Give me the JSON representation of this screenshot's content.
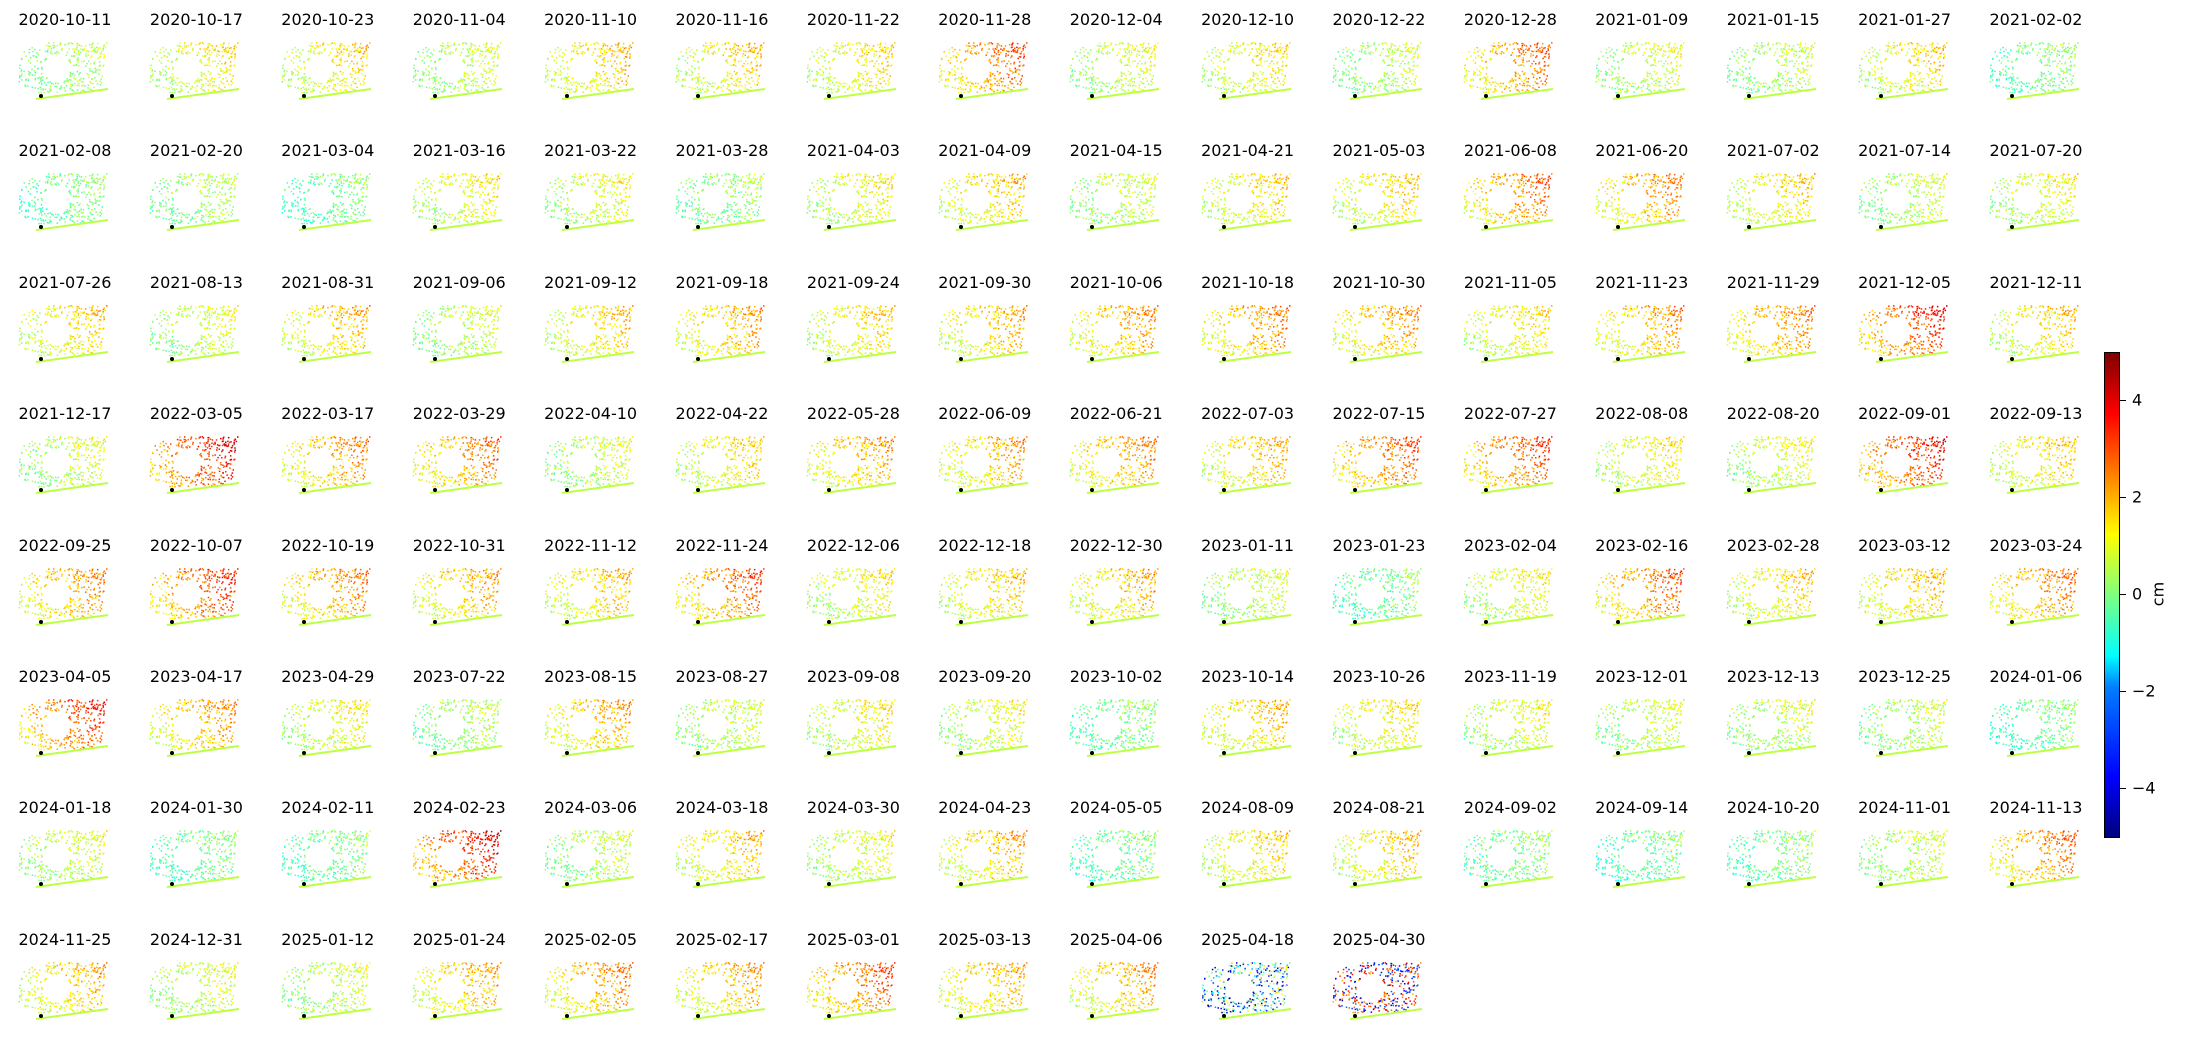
{
  "chart_data": {
    "type": "scatter",
    "layout": "small-multiples",
    "colormap": "jet",
    "colorbar": {
      "label": "cm",
      "range": [
        -5,
        5
      ],
      "ticks": [
        {
          "value": 4,
          "label": "4"
        },
        {
          "value": 2,
          "label": "2"
        },
        {
          "value": 0,
          "label": "0"
        },
        {
          "value": -2,
          "label": "−2"
        },
        {
          "value": -4,
          "label": "−4"
        }
      ]
    },
    "panels": [
      {
        "date": "2020-10-11",
        "mean": 0.2
      },
      {
        "date": "2020-10-17",
        "mean": 0.9
      },
      {
        "date": "2020-10-23",
        "mean": 1.0
      },
      {
        "date": "2020-11-04",
        "mean": 0.4
      },
      {
        "date": "2020-11-10",
        "mean": 1.2
      },
      {
        "date": "2020-11-16",
        "mean": 1.1
      },
      {
        "date": "2020-11-22",
        "mean": 1.0
      },
      {
        "date": "2020-11-28",
        "mean": 1.9
      },
      {
        "date": "2020-12-04",
        "mean": 0.5
      },
      {
        "date": "2020-12-10",
        "mean": 0.9
      },
      {
        "date": "2020-12-22",
        "mean": 0.3
      },
      {
        "date": "2020-12-28",
        "mean": 1.8
      },
      {
        "date": "2021-01-09",
        "mean": 0.5
      },
      {
        "date": "2021-01-15",
        "mean": 0.3
      },
      {
        "date": "2021-01-27",
        "mean": 1.0
      },
      {
        "date": "2021-02-02",
        "mean": -0.2
      },
      {
        "date": "2021-02-08",
        "mean": -0.2
      },
      {
        "date": "2021-02-20",
        "mean": 0.2
      },
      {
        "date": "2021-03-04",
        "mean": -0.3
      },
      {
        "date": "2021-03-16",
        "mean": 0.8
      },
      {
        "date": "2021-03-22",
        "mean": 0.6
      },
      {
        "date": "2021-03-28",
        "mean": 0.0
      },
      {
        "date": "2021-04-03",
        "mean": 0.8
      },
      {
        "date": "2021-04-09",
        "mean": 1.2
      },
      {
        "date": "2021-04-15",
        "mean": 0.4
      },
      {
        "date": "2021-04-21",
        "mean": 1.0
      },
      {
        "date": "2021-05-03",
        "mean": 1.0
      },
      {
        "date": "2021-06-08",
        "mean": 1.8
      },
      {
        "date": "2021-06-20",
        "mean": 1.6
      },
      {
        "date": "2021-07-02",
        "mean": 1.0
      },
      {
        "date": "2021-07-14",
        "mean": 0.4
      },
      {
        "date": "2021-07-20",
        "mean": 0.7
      },
      {
        "date": "2021-07-26",
        "mean": 1.1
      },
      {
        "date": "2021-08-13",
        "mean": 0.5
      },
      {
        "date": "2021-08-31",
        "mean": 1.3
      },
      {
        "date": "2021-09-06",
        "mean": 0.4
      },
      {
        "date": "2021-09-12",
        "mean": 1.1
      },
      {
        "date": "2021-09-18",
        "mean": 1.4
      },
      {
        "date": "2021-09-24",
        "mean": 1.0
      },
      {
        "date": "2021-09-30",
        "mean": 1.3
      },
      {
        "date": "2021-10-06",
        "mean": 1.5
      },
      {
        "date": "2021-10-18",
        "mean": 1.6
      },
      {
        "date": "2021-10-30",
        "mean": 1.5
      },
      {
        "date": "2021-11-05",
        "mean": 0.9
      },
      {
        "date": "2021-11-23",
        "mean": 1.5
      },
      {
        "date": "2021-11-29",
        "mean": 1.6
      },
      {
        "date": "2021-12-05",
        "mean": 2.4
      },
      {
        "date": "2021-12-11",
        "mean": 1.1
      },
      {
        "date": "2021-12-17",
        "mean": 0.5
      },
      {
        "date": "2022-03-05",
        "mean": 2.6
      },
      {
        "date": "2022-03-17",
        "mean": 1.6
      },
      {
        "date": "2022-03-29",
        "mean": 1.8
      },
      {
        "date": "2022-04-10",
        "mean": 0.5
      },
      {
        "date": "2022-04-22",
        "mean": 1.0
      },
      {
        "date": "2022-05-28",
        "mean": 1.4
      },
      {
        "date": "2022-06-09",
        "mean": 1.4
      },
      {
        "date": "2022-06-21",
        "mean": 1.6
      },
      {
        "date": "2022-07-03",
        "mean": 1.3
      },
      {
        "date": "2022-07-15",
        "mean": 2.0
      },
      {
        "date": "2022-07-27",
        "mean": 2.1
      },
      {
        "date": "2022-08-08",
        "mean": 0.8
      },
      {
        "date": "2022-08-20",
        "mean": 0.6
      },
      {
        "date": "2022-09-01",
        "mean": 2.5
      },
      {
        "date": "2022-09-13",
        "mean": 1.1
      },
      {
        "date": "2022-09-25",
        "mean": 1.6
      },
      {
        "date": "2022-10-07",
        "mean": 2.2
      },
      {
        "date": "2022-10-19",
        "mean": 1.6
      },
      {
        "date": "2022-10-31",
        "mean": 1.4
      },
      {
        "date": "2022-11-12",
        "mean": 1.2
      },
      {
        "date": "2022-11-24",
        "mean": 2.0
      },
      {
        "date": "2022-12-06",
        "mean": 0.8
      },
      {
        "date": "2022-12-18",
        "mean": 1.1
      },
      {
        "date": "2022-12-30",
        "mean": 1.3
      },
      {
        "date": "2023-01-11",
        "mean": 0.4
      },
      {
        "date": "2023-01-23",
        "mean": -0.3
      },
      {
        "date": "2023-02-04",
        "mean": 0.7
      },
      {
        "date": "2023-02-16",
        "mean": 1.9
      },
      {
        "date": "2023-02-28",
        "mean": 1.0
      },
      {
        "date": "2023-03-12",
        "mean": 1.2
      },
      {
        "date": "2023-03-24",
        "mean": 1.7
      },
      {
        "date": "2023-04-05",
        "mean": 2.3
      },
      {
        "date": "2023-04-17",
        "mean": 1.5
      },
      {
        "date": "2023-04-29",
        "mean": 0.8
      },
      {
        "date": "2023-07-22",
        "mean": 0.2
      },
      {
        "date": "2023-08-15",
        "mean": 1.4
      },
      {
        "date": "2023-08-27",
        "mean": 0.4
      },
      {
        "date": "2023-09-08",
        "mean": 0.8
      },
      {
        "date": "2023-09-20",
        "mean": 0.6
      },
      {
        "date": "2023-10-02",
        "mean": -0.2
      },
      {
        "date": "2023-10-14",
        "mean": 1.2
      },
      {
        "date": "2023-10-26",
        "mean": 0.9
      },
      {
        "date": "2023-11-19",
        "mean": 0.6
      },
      {
        "date": "2023-12-01",
        "mean": 0.4
      },
      {
        "date": "2023-12-13",
        "mean": 0.4
      },
      {
        "date": "2023-12-25",
        "mean": 0.3
      },
      {
        "date": "2024-01-06",
        "mean": -0.4
      },
      {
        "date": "2024-01-18",
        "mean": 0.5
      },
      {
        "date": "2024-01-30",
        "mean": -0.3
      },
      {
        "date": "2024-02-11",
        "mean": -0.2
      },
      {
        "date": "2024-02-23",
        "mean": 2.6
      },
      {
        "date": "2024-03-06",
        "mean": 0.3
      },
      {
        "date": "2024-03-18",
        "mean": 1.2
      },
      {
        "date": "2024-03-30",
        "mean": 0.6
      },
      {
        "date": "2024-04-23",
        "mean": 1.3
      },
      {
        "date": "2024-05-05",
        "mean": -0.3
      },
      {
        "date": "2024-08-09",
        "mean": 1.0
      },
      {
        "date": "2024-08-21",
        "mean": 1.1
      },
      {
        "date": "2024-09-02",
        "mean": -0.1
      },
      {
        "date": "2024-09-14",
        "mean": -0.4
      },
      {
        "date": "2024-10-20",
        "mean": -0.2
      },
      {
        "date": "2024-11-01",
        "mean": 0.4
      },
      {
        "date": "2024-11-13",
        "mean": 1.8
      },
      {
        "date": "2024-11-25",
        "mean": 1.3
      },
      {
        "date": "2024-12-31",
        "mean": 0.5
      },
      {
        "date": "2025-01-12",
        "mean": 0.4
      },
      {
        "date": "2025-01-24",
        "mean": 1.3
      },
      {
        "date": "2025-02-05",
        "mean": 1.6
      },
      {
        "date": "2025-02-17",
        "mean": 1.4
      },
      {
        "date": "2025-03-01",
        "mean": 2.0
      },
      {
        "date": "2025-03-13",
        "mean": 1.3
      },
      {
        "date": "2025-04-06",
        "mean": 1.4
      },
      {
        "date": "2025-04-18",
        "mean": -1.8
      },
      {
        "date": "2025-04-30",
        "mean": 0.5
      }
    ]
  }
}
